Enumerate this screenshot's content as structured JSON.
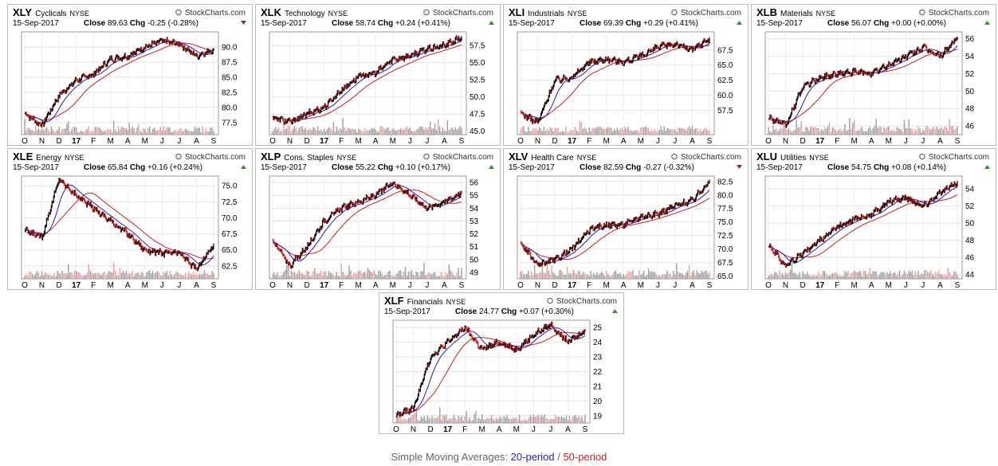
{
  "footer": {
    "prefix": "Simple Moving Averages: ",
    "ma20": "20-period",
    "sep": " / ",
    "ma50": "50-period"
  },
  "colors": {
    "ma20": "#1f1fb8",
    "ma50": "#cc1f1f",
    "price_up": "#000000",
    "price_down": "#cc1f1f",
    "volume": "#9e9e9e",
    "volume_red": "#e8a0a0",
    "arrow_up": "#3a8a3a",
    "arrow_down": "#9a1f4a"
  },
  "months": [
    "O",
    "N",
    "D",
    "17",
    "F",
    "M",
    "A",
    "M",
    "J",
    "J",
    "A",
    "S"
  ],
  "chart_data": [
    {
      "type": "line",
      "ticker": "XLY",
      "sector": "Cyclicals",
      "exchange": "NYSE",
      "source": "StockCharts.com",
      "date": "15-Sep-2017",
      "close_label": "Close",
      "close": "89.63",
      "chg_label": "Chg",
      "chg": "-0.25 (-0.28%)",
      "direction": "down",
      "y_ticks": [
        "90.0",
        "87.5",
        "85.0",
        "82.5",
        "80.0",
        "77.5"
      ],
      "ylim": [
        75.5,
        92.5
      ],
      "x": [
        0,
        1,
        2,
        3,
        4,
        5,
        6,
        7,
        8,
        9,
        10,
        11
      ],
      "series": [
        {
          "name": "Price",
          "values": [
            79.0,
            77.0,
            82.0,
            84.5,
            85.5,
            88.0,
            88.5,
            90.0,
            91.0,
            90.5,
            88.5,
            89.6
          ]
        }
      ]
    },
    {
      "type": "line",
      "ticker": "XLK",
      "sector": "Technology",
      "exchange": "NYSE",
      "source": "StockCharts.com",
      "date": "15-Sep-2017",
      "close_label": "Close",
      "close": "58.74",
      "chg_label": "Chg",
      "chg": "+0.24 (+0.41%)",
      "direction": "up",
      "y_ticks": [
        "57.5",
        "55.0",
        "52.5",
        "50.0",
        "47.5",
        "45.0"
      ],
      "ylim": [
        44.5,
        59.5
      ],
      "x": [
        0,
        1,
        2,
        3,
        4,
        5,
        6,
        7,
        8,
        9,
        10,
        11
      ],
      "series": [
        {
          "name": "Price",
          "values": [
            47.0,
            46.3,
            47.5,
            48.5,
            51.0,
            53.0,
            53.5,
            55.5,
            56.0,
            57.0,
            57.5,
            58.7
          ]
        }
      ]
    },
    {
      "type": "line",
      "ticker": "XLI",
      "sector": "Industrials",
      "exchange": "NYSE",
      "source": "StockCharts.com",
      "date": "15-Sep-2017",
      "close_label": "Close",
      "close": "69.39",
      "chg_label": "Chg",
      "chg": "+0.29 (+0.41%)",
      "direction": "up",
      "y_ticks": [
        "67.5",
        "65.0",
        "62.5",
        "60.0",
        "57.5"
      ],
      "ylim": [
        53.5,
        70.5
      ],
      "x": [
        0,
        1,
        2,
        3,
        4,
        5,
        6,
        7,
        8,
        9,
        10,
        11
      ],
      "series": [
        {
          "name": "Price",
          "values": [
            57.0,
            55.5,
            62.5,
            63.0,
            65.5,
            66.0,
            65.5,
            66.5,
            68.0,
            68.5,
            67.5,
            69.4
          ]
        }
      ]
    },
    {
      "type": "line",
      "ticker": "XLB",
      "sector": "Materials",
      "exchange": "NYSE",
      "source": "StockCharts.com",
      "date": "15-Sep-2017",
      "close_label": "Close",
      "close": "56.07",
      "chg_label": "Chg",
      "chg": "+0.00 (+0.00%)",
      "direction": "up",
      "y_ticks": [
        "56",
        "54",
        "52",
        "50",
        "48",
        "46"
      ],
      "ylim": [
        45.0,
        56.8
      ],
      "x": [
        0,
        1,
        2,
        3,
        4,
        5,
        6,
        7,
        8,
        9,
        10,
        11
      ],
      "series": [
        {
          "name": "Price",
          "values": [
            47.0,
            46.0,
            50.5,
            51.5,
            52.0,
            52.2,
            52.0,
            53.0,
            54.0,
            55.0,
            54.0,
            56.1
          ]
        }
      ]
    },
    {
      "type": "line",
      "ticker": "XLE",
      "sector": "Energy",
      "exchange": "NYSE",
      "source": "StockCharts.com",
      "date": "15-Sep-2017",
      "close_label": "Close",
      "close": "65.84",
      "chg_label": "Chg",
      "chg": "+0.16 (+0.24%)",
      "direction": "up",
      "y_ticks": [
        "75.0",
        "72.5",
        "70.0",
        "67.5",
        "65.0",
        "62.5"
      ],
      "ylim": [
        60.5,
        76.5
      ],
      "x": [
        0,
        1,
        2,
        3,
        4,
        5,
        6,
        7,
        8,
        9,
        10,
        11
      ],
      "series": [
        {
          "name": "Price",
          "values": [
            68.0,
            67.0,
            76.0,
            73.5,
            71.5,
            69.5,
            67.5,
            65.0,
            64.5,
            64.5,
            62.0,
            65.8
          ]
        }
      ]
    },
    {
      "type": "line",
      "ticker": "XLP",
      "sector": "Cons. Staples",
      "exchange": "NYSE",
      "source": "StockCharts.com",
      "date": "15-Sep-2017",
      "close_label": "Close",
      "close": "55.22",
      "chg_label": "Chg",
      "chg": "+0.10 (+0.17%)",
      "direction": "up",
      "y_ticks": [
        "56",
        "55",
        "54",
        "53",
        "52",
        "51",
        "50",
        "49"
      ],
      "ylim": [
        48.5,
        56.5
      ],
      "x": [
        0,
        1,
        2,
        3,
        4,
        5,
        6,
        7,
        8,
        9,
        10,
        11
      ],
      "series": [
        {
          "name": "Price",
          "values": [
            51.5,
            49.5,
            51.0,
            53.0,
            54.0,
            54.5,
            55.0,
            56.0,
            55.0,
            54.0,
            54.5,
            55.2
          ]
        }
      ]
    },
    {
      "type": "line",
      "ticker": "XLV",
      "sector": "Health Care",
      "exchange": "NYSE",
      "source": "StockCharts.com",
      "date": "15-Sep-2017",
      "close_label": "Close",
      "close": "82.59",
      "chg_label": "Chg",
      "chg": "-0.27 (-0.32%)",
      "direction": "down",
      "y_ticks": [
        "82.5",
        "80.0",
        "77.5",
        "75.0",
        "72.5",
        "70.0",
        "67.5",
        "65.0"
      ],
      "ylim": [
        64.5,
        83.5
      ],
      "x": [
        0,
        1,
        2,
        3,
        4,
        5,
        6,
        7,
        8,
        9,
        10,
        11
      ],
      "series": [
        {
          "name": "Price",
          "values": [
            71.0,
            67.0,
            68.0,
            70.0,
            73.5,
            74.5,
            74.5,
            76.0,
            76.5,
            78.0,
            79.0,
            82.6
          ]
        }
      ]
    },
    {
      "type": "line",
      "ticker": "XLU",
      "sector": "Utilities",
      "exchange": "NYSE",
      "source": "StockCharts.com",
      "date": "15-Sep-2017",
      "close_label": "Close",
      "close": "54.75",
      "chg_label": "Chg",
      "chg": "+0.08 (+0.14%)",
      "direction": "up",
      "y_ticks": [
        "54",
        "52",
        "50",
        "48",
        "46",
        "44"
      ],
      "ylim": [
        43.5,
        55.5
      ],
      "x": [
        0,
        1,
        2,
        3,
        4,
        5,
        6,
        7,
        8,
        9,
        10,
        11
      ],
      "series": [
        {
          "name": "Price",
          "values": [
            47.5,
            45.0,
            46.5,
            48.0,
            49.5,
            50.5,
            51.0,
            52.5,
            53.0,
            52.0,
            53.5,
            54.8
          ]
        }
      ]
    },
    {
      "type": "line",
      "ticker": "XLF",
      "sector": "Financials",
      "exchange": "NYSE",
      "source": "StockCharts.com",
      "date": "15-Sep-2017",
      "close_label": "Close",
      "close": "24.77",
      "chg_label": "Chg",
      "chg": "+0.07 (+0.30%)",
      "direction": "up",
      "y_ticks": [
        "25",
        "24",
        "23",
        "22",
        "21",
        "20",
        "19"
      ],
      "ylim": [
        18.5,
        25.5
      ],
      "x": [
        0,
        1,
        2,
        3,
        4,
        5,
        6,
        7,
        8,
        9,
        10,
        11
      ],
      "series": [
        {
          "name": "Price",
          "values": [
            19.0,
            19.5,
            23.0,
            24.0,
            25.0,
            23.5,
            24.0,
            23.5,
            24.5,
            25.2,
            24.0,
            24.8
          ]
        }
      ]
    }
  ]
}
